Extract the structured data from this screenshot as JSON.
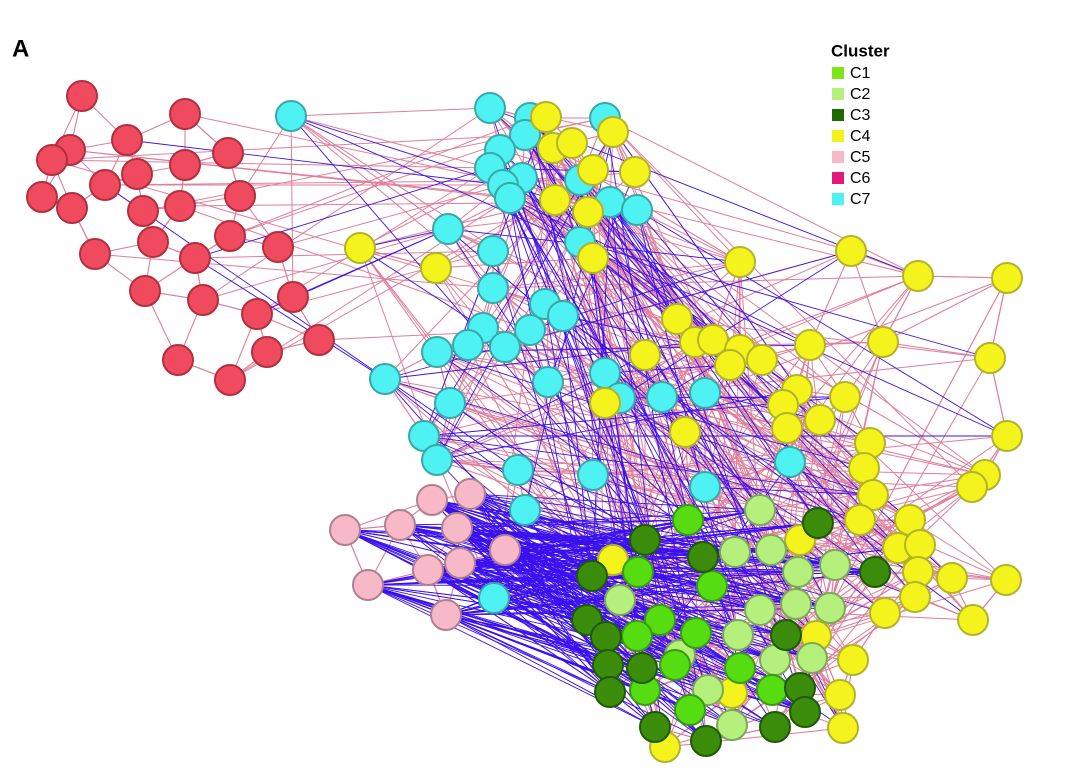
{
  "panel_label": "A",
  "legend": {
    "title": "Cluster",
    "items": [
      {
        "label": "C1",
        "color": "#7ee51b"
      },
      {
        "label": "C2",
        "color": "#b5f07c"
      },
      {
        "label": "C3",
        "color": "#1f6a00"
      },
      {
        "label": "C4",
        "color": "#f4f41c"
      },
      {
        "label": "C5",
        "color": "#f7b8c8"
      },
      {
        "label": "C6",
        "color": "#e31a7c"
      },
      {
        "label": "C7",
        "color": "#4ff2f2"
      }
    ]
  }
}
